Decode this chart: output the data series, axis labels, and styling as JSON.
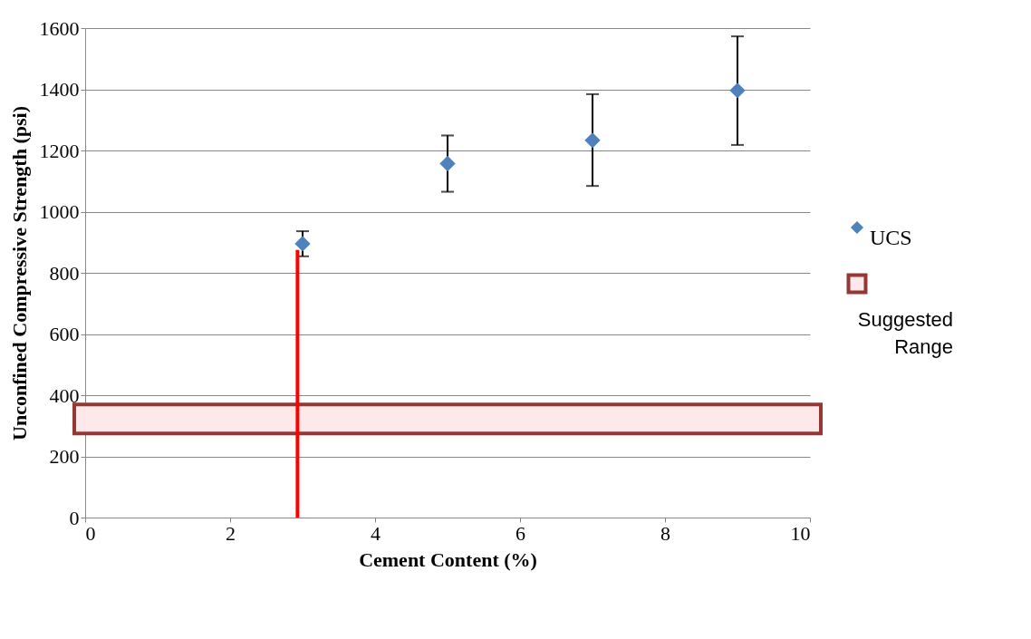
{
  "chart_data": {
    "type": "scatter",
    "xlabel": "Cement Content (%)",
    "ylabel": "Unconfined Compressive Strength (psi)",
    "x": [
      3,
      5,
      7,
      9
    ],
    "series": [
      {
        "name": "UCS",
        "color": "#4f81bd",
        "values": [
          895,
          1157,
          1233,
          1396
        ],
        "errors": [
          [
            854,
            936
          ],
          [
            1065,
            1249
          ],
          [
            1084,
            1384
          ],
          [
            1218,
            1573
          ]
        ]
      }
    ],
    "xlim": [
      0,
      10
    ],
    "xticks": [
      0,
      2,
      4,
      6,
      8,
      10
    ],
    "ylim": [
      0,
      1600
    ],
    "yticks": [
      0,
      200,
      400,
      600,
      800,
      1000,
      1200,
      1400,
      1600
    ],
    "bands": [
      {
        "axis": "y",
        "from": 275,
        "to": 370,
        "label": "Suggested Range",
        "color": "#953735"
      }
    ],
    "ref_lines": [
      {
        "axis": "x",
        "value": 2.93,
        "color": "#ff0000"
      }
    ],
    "grid": "y",
    "legend": "right",
    "marker": "diamond"
  }
}
